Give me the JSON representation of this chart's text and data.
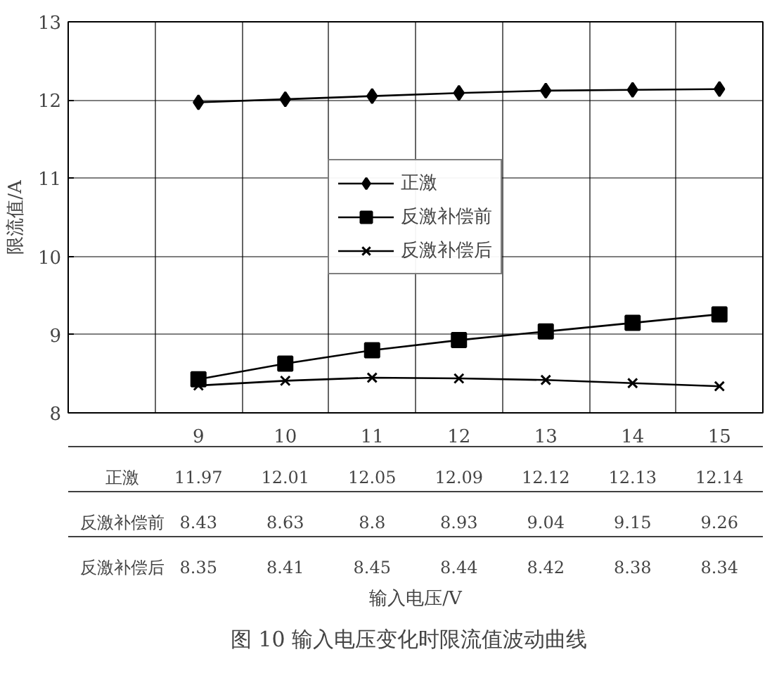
{
  "chart_data": {
    "type": "line",
    "title": "图 10   输入电压变化时限流值波动曲线",
    "annotations": [
      "输入电压/V"
    ],
    "ylabel": "限流值/A",
    "categories": [
      "9",
      "10",
      "11",
      "12",
      "13",
      "14",
      "15"
    ],
    "series": [
      {
        "name": "正激",
        "color": "#000000",
        "marker": "diamond",
        "values": [
          11.97,
          12.01,
          12.05,
          12.09,
          12.12,
          12.13,
          12.14
        ]
      },
      {
        "name": "反激补偿前",
        "color": "#000000",
        "marker": "square",
        "values": [
          8.43,
          8.63,
          8.8,
          8.93,
          9.04,
          9.15,
          9.26
        ]
      },
      {
        "name": "反激补偿后",
        "color": "#000000",
        "marker": "cross",
        "values": [
          8.35,
          8.41,
          8.45,
          8.44,
          8.42,
          8.38,
          8.34
        ]
      }
    ],
    "ylim": [
      8,
      13
    ],
    "yticks": [
      8,
      9,
      10,
      11,
      12,
      13
    ],
    "grid": true,
    "legend": "center",
    "data_labels": true,
    "line_style": "solid"
  }
}
